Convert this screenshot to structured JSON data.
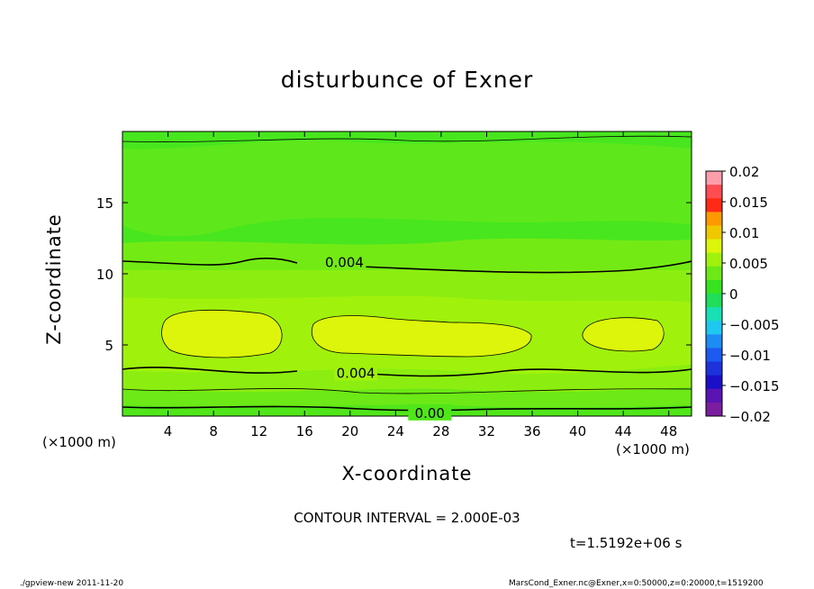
{
  "chart_data": {
    "type": "heatmap",
    "title": "disturbunce of Exner",
    "xlabel": "X-coordinate",
    "ylabel": "Z-coordinate",
    "x_unit": "(×1000 m)",
    "y_unit": "(×1000 m)",
    "xlim": [
      0,
      50
    ],
    "ylim": [
      0,
      20
    ],
    "x_ticks": [
      "4",
      "8",
      "12",
      "16",
      "20",
      "24",
      "28",
      "32",
      "36",
      "40",
      "44",
      "48"
    ],
    "y_ticks": [
      "5",
      "10",
      "15"
    ],
    "contour_interval_text": "CONTOUR INTERVAL = 2.000E-03",
    "contour_labels": [
      "0.004",
      "0.004",
      "0.00"
    ],
    "colorbar": {
      "labels": [
        "0.02",
        "0.015",
        "0.01",
        "0.005",
        "0",
        "−0.005",
        "−0.01",
        "−0.015",
        "−0.02"
      ],
      "min": -0.02,
      "max": 0.02
    },
    "time_label": "t=1.5192e+06 s"
  },
  "footer": {
    "left": "./gpview-new   2011-11-20",
    "right": "MarsCond_Exner.nc@Exner,x=0:50000,z=0:20000,t=1519200"
  }
}
